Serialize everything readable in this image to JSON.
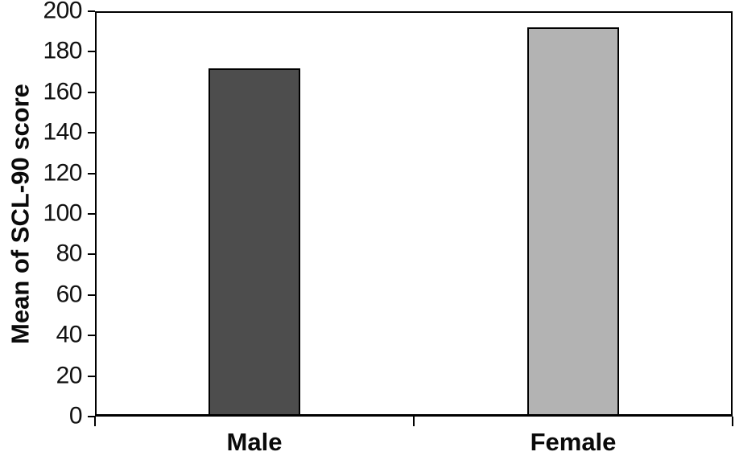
{
  "chart_data": {
    "type": "bar",
    "title": "",
    "xlabel": "",
    "ylabel": "Mean of SCL-90 score",
    "categories": [
      "Male",
      "Female"
    ],
    "values": [
      172,
      192
    ],
    "bar_colors": [
      "#4d4d4d",
      "#b3b3b3"
    ],
    "bar_border_color": "#000000",
    "axis_color": "#000000",
    "text_color": "#111111",
    "ylim": [
      0,
      200
    ],
    "ytick_step": 20,
    "yticks": [
      0,
      20,
      40,
      60,
      80,
      100,
      120,
      140,
      160,
      180,
      200
    ],
    "grid": false,
    "legend_position": "none",
    "plot_border": "full-box"
  }
}
